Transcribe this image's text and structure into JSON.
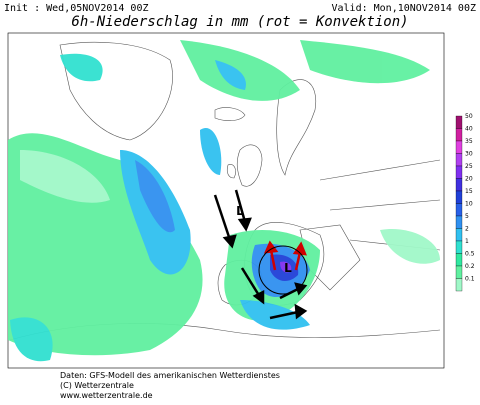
{
  "header": {
    "init": "Init : Wed,05NOV2014 00Z",
    "valid": "Valid: Mon,10NOV2014 00Z",
    "title": "6h-Niederschlag in mm (rot = Konvektion)"
  },
  "legend": [
    {
      "label": "50",
      "color": "#a01070"
    },
    {
      "label": "40",
      "color": "#d020a0"
    },
    {
      "label": "35",
      "color": "#e040e0"
    },
    {
      "label": "30",
      "color": "#b040f0"
    },
    {
      "label": "25",
      "color": "#8030f0"
    },
    {
      "label": "20",
      "color": "#4030e0"
    },
    {
      "label": "15",
      "color": "#2040d8"
    },
    {
      "label": "10",
      "color": "#2860e8"
    },
    {
      "label": "5",
      "color": "#3090f0"
    },
    {
      "label": "2",
      "color": "#30c0f0"
    },
    {
      "label": "1",
      "color": "#30e0d0"
    },
    {
      "label": "0.5",
      "color": "#30e8a0"
    },
    {
      "label": "0.2",
      "color": "#60f0a0"
    },
    {
      "label": "0.1",
      "color": "#a0f8c8"
    }
  ],
  "lows": [
    "L",
    "L"
  ],
  "footer": [
    "Daten: GFS-Modell des amerikanischen Wetterdienstes",
    "(C) Wetterzentrale",
    "www.wetterzentrale.de"
  ]
}
